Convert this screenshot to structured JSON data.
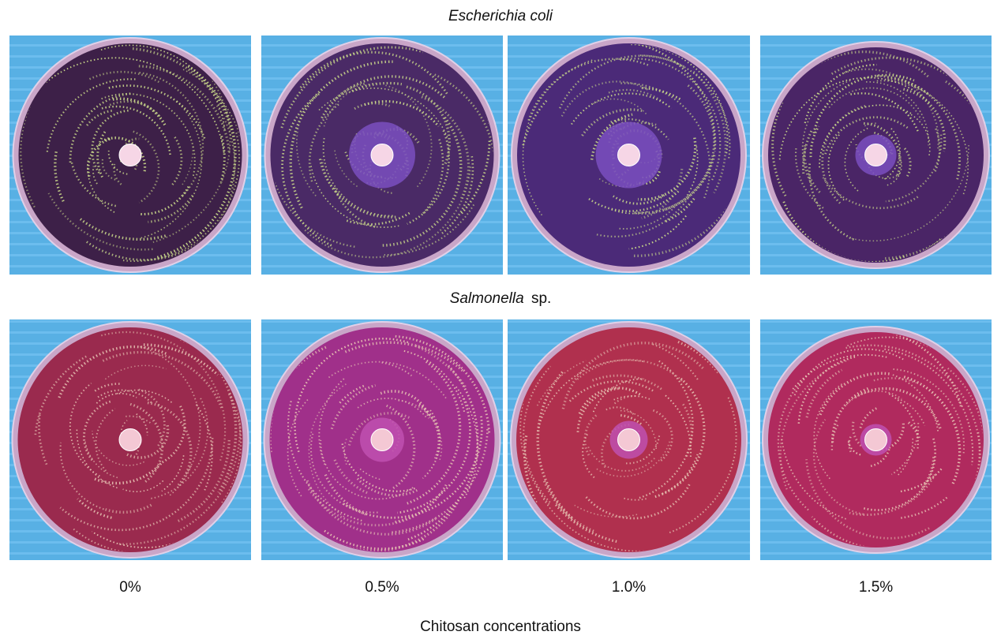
{
  "rows": [
    {
      "title": "Escherichia coli"
    },
    {
      "title": "Salmonella",
      "suffix": "sp."
    }
  ],
  "columns": [
    "0%",
    "0.5%",
    "1.0%",
    "1.5%"
  ],
  "caption": "Chitosan concentrations"
}
